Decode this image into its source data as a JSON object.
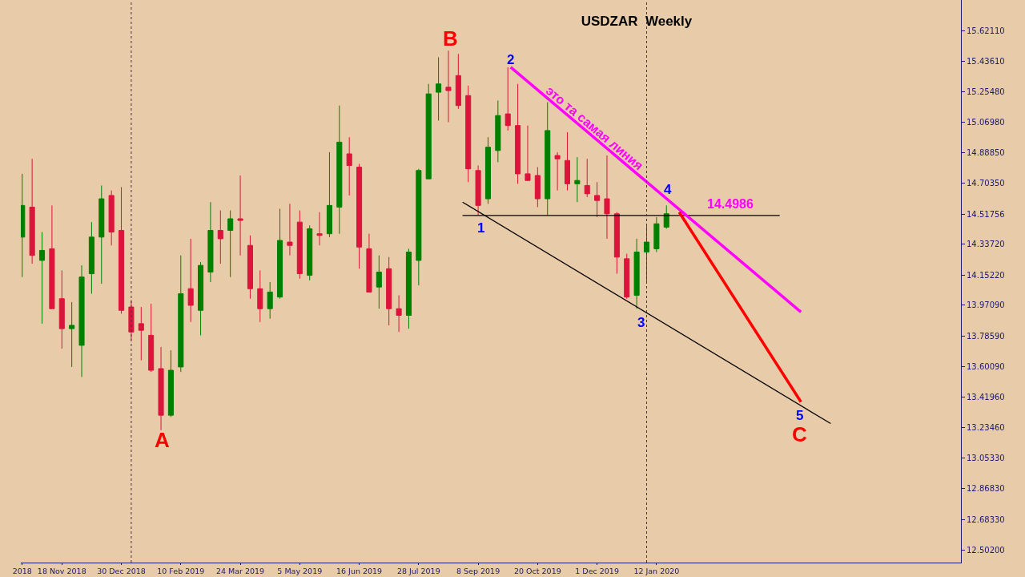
{
  "chart_data": {
    "type": "candlestick",
    "title": "USDZAR  Weekly",
    "x": [
      "2018-10-21",
      "2018-10-28",
      "2018-11-04",
      "2018-11-11",
      "2018-11-18",
      "2018-11-25",
      "2018-12-02",
      "2018-12-09",
      "2018-12-16",
      "2018-12-23",
      "2018-12-30",
      "2019-01-06",
      "2019-01-13",
      "2019-01-20",
      "2019-01-27",
      "2019-02-03",
      "2019-02-10",
      "2019-02-17",
      "2019-02-24",
      "2019-03-03",
      "2019-03-10",
      "2019-03-17",
      "2019-03-24",
      "2019-03-31",
      "2019-04-07",
      "2019-04-14",
      "2019-04-21",
      "2019-04-28",
      "2019-05-05",
      "2019-05-12",
      "2019-05-19",
      "2019-05-26",
      "2019-06-02",
      "2019-06-09",
      "2019-06-16",
      "2019-06-23",
      "2019-06-30",
      "2019-07-07",
      "2019-07-14",
      "2019-07-21",
      "2019-07-28",
      "2019-08-04",
      "2019-08-11",
      "2019-08-18",
      "2019-08-25",
      "2019-09-01",
      "2019-09-08",
      "2019-09-15",
      "2019-09-22",
      "2019-09-29",
      "2019-10-06",
      "2019-10-13",
      "2019-10-20",
      "2019-10-27",
      "2019-11-03",
      "2019-11-10",
      "2019-11-17",
      "2019-11-24",
      "2019-12-01",
      "2019-12-08",
      "2019-12-15",
      "2019-12-22",
      "2019-12-29",
      "2020-01-05",
      "2020-01-12",
      "2020-01-19"
    ],
    "ohlc": [
      [
        14.38,
        14.76,
        14.14,
        14.57
      ],
      [
        14.56,
        14.85,
        14.22,
        14.27
      ],
      [
        14.24,
        14.41,
        13.86,
        14.3
      ],
      [
        14.31,
        14.57,
        13.95,
        13.95
      ],
      [
        14.01,
        14.18,
        13.71,
        13.83
      ],
      [
        13.83,
        13.99,
        13.6,
        13.85
      ],
      [
        13.73,
        14.21,
        13.54,
        14.14
      ],
      [
        14.16,
        14.47,
        14.04,
        14.38
      ],
      [
        14.38,
        14.69,
        14.1,
        14.61
      ],
      [
        14.63,
        14.66,
        14.33,
        14.41
      ],
      [
        14.42,
        14.68,
        13.92,
        13.94
      ],
      [
        13.96,
        14.0,
        13.76,
        13.81
      ],
      [
        13.86,
        13.96,
        13.64,
        13.82
      ],
      [
        13.79,
        13.98,
        13.57,
        13.58
      ],
      [
        13.59,
        13.72,
        13.22,
        13.31
      ],
      [
        13.31,
        13.7,
        13.3,
        13.58
      ],
      [
        13.6,
        14.27,
        13.57,
        14.04
      ],
      [
        14.07,
        14.37,
        13.87,
        13.97
      ],
      [
        13.94,
        14.23,
        13.79,
        14.21
      ],
      [
        14.17,
        14.59,
        14.11,
        14.42
      ],
      [
        14.42,
        14.54,
        14.22,
        14.37
      ],
      [
        14.42,
        14.54,
        14.14,
        14.49
      ],
      [
        14.49,
        14.75,
        14.27,
        14.48
      ],
      [
        14.33,
        14.39,
        14.01,
        14.07
      ],
      [
        14.07,
        14.18,
        13.87,
        13.95
      ],
      [
        13.95,
        14.11,
        13.89,
        14.05
      ],
      [
        14.02,
        14.55,
        14.01,
        14.36
      ],
      [
        14.35,
        14.58,
        14.27,
        14.33
      ],
      [
        14.47,
        14.54,
        14.13,
        14.16
      ],
      [
        14.15,
        14.45,
        14.12,
        14.43
      ],
      [
        14.4,
        14.53,
        14.33,
        14.39
      ],
      [
        14.4,
        14.89,
        14.38,
        14.57
      ],
      [
        14.56,
        15.17,
        14.4,
        14.95
      ],
      [
        14.88,
        14.98,
        14.63,
        14.81
      ],
      [
        14.8,
        14.82,
        14.19,
        14.32
      ],
      [
        14.31,
        14.4,
        14.05,
        14.05
      ],
      [
        14.08,
        14.27,
        13.95,
        14.17
      ],
      [
        14.19,
        14.26,
        13.85,
        13.95
      ],
      [
        13.95,
        14.03,
        13.81,
        13.91
      ],
      [
        13.91,
        14.31,
        13.83,
        14.29
      ],
      [
        14.24,
        14.79,
        14.09,
        14.78
      ],
      [
        14.73,
        15.3,
        14.73,
        15.24
      ],
      [
        15.25,
        15.46,
        15.08,
        15.3
      ],
      [
        15.28,
        15.5,
        15.07,
        15.26
      ],
      [
        15.35,
        15.48,
        15.15,
        15.17
      ],
      [
        15.23,
        15.29,
        14.71,
        14.79
      ],
      [
        14.78,
        14.81,
        14.51,
        14.57
      ],
      [
        14.61,
        14.98,
        14.58,
        14.92
      ],
      [
        14.9,
        15.2,
        14.83,
        15.11
      ],
      [
        15.12,
        15.4,
        15.02,
        15.05
      ],
      [
        15.05,
        15.3,
        14.7,
        14.76
      ],
      [
        14.76,
        15.05,
        14.72,
        14.72
      ],
      [
        14.75,
        14.8,
        14.56,
        14.61
      ],
      [
        14.61,
        15.19,
        14.51,
        15.02
      ],
      [
        14.87,
        14.89,
        14.66,
        14.85
      ],
      [
        14.84,
        15.01,
        14.66,
        14.7
      ],
      [
        14.7,
        14.86,
        14.59,
        14.72
      ],
      [
        14.69,
        14.85,
        14.62,
        14.64
      ],
      [
        14.63,
        14.71,
        14.5,
        14.6
      ],
      [
        14.61,
        14.87,
        14.37,
        14.52
      ],
      [
        14.52,
        14.53,
        14.16,
        14.26
      ],
      [
        14.25,
        14.28,
        14.01,
        14.02
      ],
      [
        14.03,
        14.37,
        13.95,
        14.29
      ],
      [
        14.29,
        14.45,
        14.1,
        14.35
      ],
      [
        14.31,
        14.5,
        14.29,
        14.46
      ],
      [
        14.44,
        14.57,
        14.43,
        14.52
      ]
    ],
    "series": [
      {
        "type": "line",
        "color": "#000000",
        "x": [
          "2019-08-28",
          "2020-04-08"
        ],
        "values": [
          14.51,
          14.51
        ]
      },
      {
        "type": "line",
        "color": "#000000",
        "x": [
          "2019-08-28",
          "2020-05-14"
        ],
        "values": [
          14.59,
          13.26
        ]
      },
      {
        "type": "line",
        "color": "#ff00ff",
        "x": [
          "2019-10-01",
          "2020-04-23"
        ],
        "values": [
          15.4,
          13.93
        ]
      },
      {
        "type": "line",
        "color": "#ff0000",
        "x": [
          "2020-01-28",
          "2020-04-23"
        ],
        "values": [
          14.53,
          13.39
        ]
      }
    ],
    "ref_lines": [
      {
        "axis": "x",
        "value": "2019-01-06",
        "line_style": "dotted",
        "color": "#4b3050"
      },
      {
        "axis": "x",
        "value": "2020-01-05",
        "line_style": "dotted",
        "color": "#4b3050"
      }
    ],
    "annotations": [
      "A",
      "B",
      "1",
      "2",
      "3",
      "4",
      "5",
      "C",
      "14.4986",
      "это та самая линия"
    ],
    "xlim": [
      "2018-10-20",
      "2020-08-14"
    ],
    "xticks": [
      {
        "value": "2018-10-21",
        "label": "2018"
      },
      {
        "value": "2018-11-18",
        "label": "18 Nov 2018"
      },
      {
        "value": "2018-12-30",
        "label": "30 Dec 2018"
      },
      {
        "value": "2019-02-10",
        "label": "10 Feb 2019"
      },
      {
        "value": "2019-03-24",
        "label": "24 Mar 2019"
      },
      {
        "value": "2019-05-05",
        "label": "5 May 2019"
      },
      {
        "value": "2019-06-16",
        "label": "16 Jun 2019"
      },
      {
        "value": "2019-07-28",
        "label": "28 Jul 2019"
      },
      {
        "value": "2019-09-08",
        "label": "8 Sep 2019"
      },
      {
        "value": "2019-10-20",
        "label": "20 Oct 2019"
      },
      {
        "value": "2019-12-01",
        "label": "1 Dec 2019"
      },
      {
        "value": "2020-01-12",
        "label": "12 Jan 2020"
      }
    ],
    "ylim": [
      12.425,
      15.804
    ],
    "yticks": [
      {
        "value": 15.6211,
        "label": "15.62110"
      },
      {
        "value": 15.4361,
        "label": "15.43610"
      },
      {
        "value": 15.2548,
        "label": "15.25480"
      },
      {
        "value": 15.0698,
        "label": "15.06980"
      },
      {
        "value": 14.8885,
        "label": "14.88850"
      },
      {
        "value": 14.7035,
        "label": "14.70350"
      },
      {
        "value": 14.51756,
        "label": "14.51756"
      },
      {
        "value": 14.3372,
        "label": "14.33720"
      },
      {
        "value": 14.1522,
        "label": "14.15220"
      },
      {
        "value": 13.9709,
        "label": "13.97090"
      },
      {
        "value": 13.7859,
        "label": "13.78590"
      },
      {
        "value": 13.6009,
        "label": "13.60090"
      },
      {
        "value": 13.4196,
        "label": "13.41960"
      },
      {
        "value": 13.2346,
        "label": "13.23460"
      },
      {
        "value": 13.0533,
        "label": "13.05330"
      },
      {
        "value": 12.8683,
        "label": "12.86830"
      },
      {
        "value": 12.6833,
        "label": "12.68330"
      },
      {
        "value": 12.502,
        "label": "12.50200"
      }
    ],
    "grid": false
  }
}
